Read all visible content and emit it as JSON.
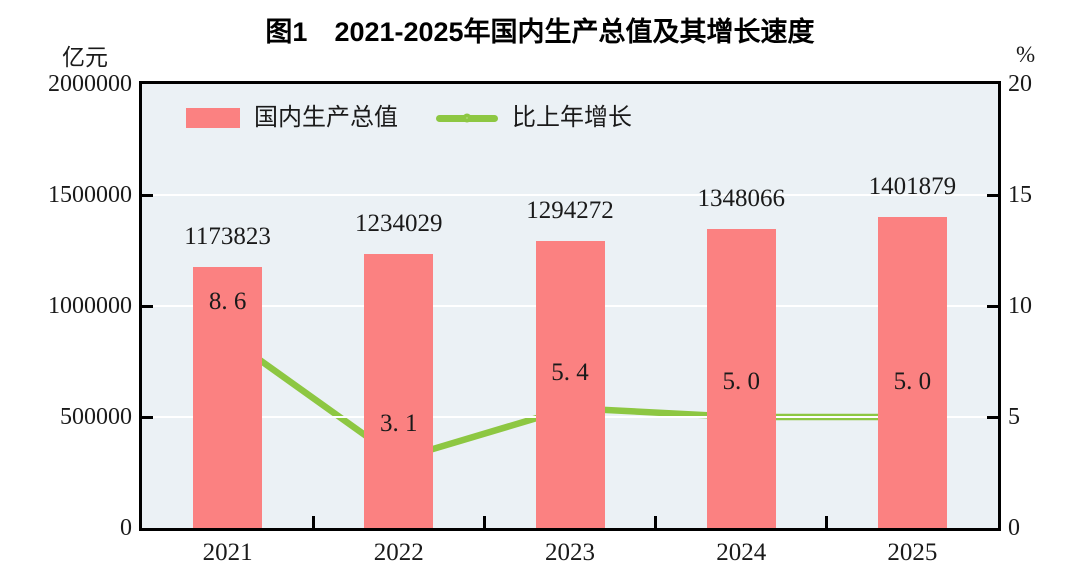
{
  "title": "图1　2021-2025年国内生产总值及其增长速度",
  "left_axis": {
    "unit": "亿元",
    "ticks": [
      "2000000",
      "1500000",
      "1000000",
      "500000",
      "0"
    ]
  },
  "right_axis": {
    "unit": "%",
    "ticks": [
      "20",
      "15",
      "10",
      "5",
      "0"
    ]
  },
  "colors": {
    "bar": "#FB8181",
    "line": "#8DC742",
    "marker_fill": "#FFFFFF",
    "plot_background": "#EBF1F5",
    "gridline": "#FFFFFF",
    "axis": "#000000",
    "text": "#1A1A1A"
  },
  "chart_data": {
    "type": "bar+line",
    "title": "图1　2021-2025年国内生产总值及其增长速度",
    "categories": [
      "2021",
      "2022",
      "2023",
      "2024",
      "2025"
    ],
    "series": [
      {
        "name": "国内生产总值",
        "type": "bar",
        "axis": "left",
        "unit": "亿元",
        "values": [
          1173823,
          1234029,
          1294272,
          1348066,
          1401879
        ],
        "labels": [
          "1173823",
          "1234029",
          "1294272",
          "1348066",
          "1401879"
        ]
      },
      {
        "name": "比上年增长",
        "type": "line",
        "axis": "right",
        "unit": "%",
        "values": [
          8.6,
          3.1,
          5.4,
          5.0,
          5.0
        ],
        "labels": [
          "8. 6",
          "3. 1",
          "5. 4",
          "5. 0",
          "5. 0"
        ]
      }
    ],
    "left_ylim": [
      0,
      2000000
    ],
    "right_ylim": [
      0,
      20
    ],
    "left_tick_step": 500000,
    "right_tick_step": 5,
    "grid": true,
    "legend_position": "top-inside"
  }
}
